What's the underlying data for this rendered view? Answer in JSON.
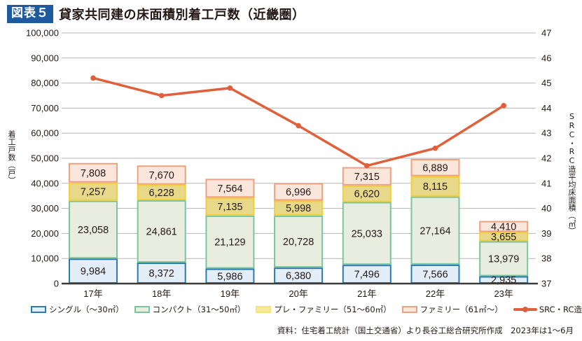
{
  "header": {
    "badge": "図表５",
    "title": "貸家共同建の床面積別着工戸数（近畿圏）"
  },
  "chart_data": {
    "type": "bar",
    "subtype": "stacked bar + line (dual axis)",
    "title": "貸家共同建の床面積別着工戸数（近畿圏）",
    "categories": [
      "17年",
      "18年",
      "19年",
      "20年",
      "21年",
      "22年",
      "23年"
    ],
    "series": [
      {
        "name": "シングル（〜30㎡）",
        "type": "bar",
        "axis": "left",
        "fill": "#e3eef8",
        "stroke": "#2a7ab8",
        "values": [
          9984,
          8372,
          5986,
          6380,
          7496,
          7566,
          2935
        ],
        "labels": [
          "9,984",
          "8,372",
          "5,986",
          "6,380",
          "7,496",
          "7,566",
          "2,935"
        ]
      },
      {
        "name": "コンパクト（31〜50㎡）",
        "type": "bar",
        "axis": "left",
        "fill": "#e9ede0",
        "stroke": "#7cc59a",
        "values": [
          23058,
          24861,
          21129,
          20728,
          25033,
          27164,
          13979
        ],
        "labels": [
          "23,058",
          "24,861",
          "21,129",
          "20,728",
          "25,033",
          "27,164",
          "13,979"
        ]
      },
      {
        "name": "プレ・ファミリー（51〜60㎡）",
        "type": "bar",
        "axis": "left",
        "fill": "#e8d98a",
        "stroke": "#f0cf3c",
        "values": [
          7257,
          6228,
          7135,
          5998,
          6620,
          8115,
          3655
        ],
        "labels": [
          "7,257",
          "6,228",
          "7,135",
          "5,998",
          "6,620",
          "8,115",
          "3,655"
        ]
      },
      {
        "name": "ファミリー（61㎡〜）",
        "type": "bar",
        "axis": "left",
        "fill": "#fbe6dc",
        "stroke": "#f0a080",
        "values": [
          7808,
          7670,
          7564,
          6996,
          7315,
          6889,
          4410
        ],
        "labels": [
          "7,808",
          "7,670",
          "7,564",
          "6,996",
          "7,315",
          "6,889",
          "4,410"
        ]
      },
      {
        "name": "SRC・RC造平均床面積",
        "type": "line",
        "axis": "right",
        "stroke": "#e0603c",
        "values": [
          45.2,
          44.5,
          44.8,
          43.3,
          41.7,
          42.4,
          44.1
        ]
      }
    ],
    "ylabel": "着工戸数（戸）",
    "ylim": [
      0,
      100000
    ],
    "yticks": [
      "0",
      "10,000",
      "20,000",
      "30,000",
      "40,000",
      "50,000",
      "60,000",
      "70,000",
      "80,000",
      "90,000",
      "100,000"
    ],
    "y2label": "SRC・RC造平均床面積（㎡）",
    "y2lim": [
      37,
      47
    ],
    "y2ticks": [
      "37",
      "38",
      "39",
      "40",
      "41",
      "42",
      "43",
      "44",
      "45",
      "46",
      "47"
    ],
    "grid": true,
    "legend_position": "bottom"
  },
  "legend": {
    "single": "シングル（〜30㎡）",
    "compact": "コンパクト（31〜50㎡）",
    "prefamily": "プレ・ファミリー（51〜60㎡）",
    "family": "ファミリー（61㎡〜）",
    "line": "SRC・RC造平均床面積"
  },
  "axis_titles": {
    "left": "着工戸数（戸）",
    "right": "SRC・RC造平均床面積（㎡）"
  },
  "source": "資料：住宅着工統計（国土交通省）より長谷工総合研究所作成　2023年は1〜6月"
}
